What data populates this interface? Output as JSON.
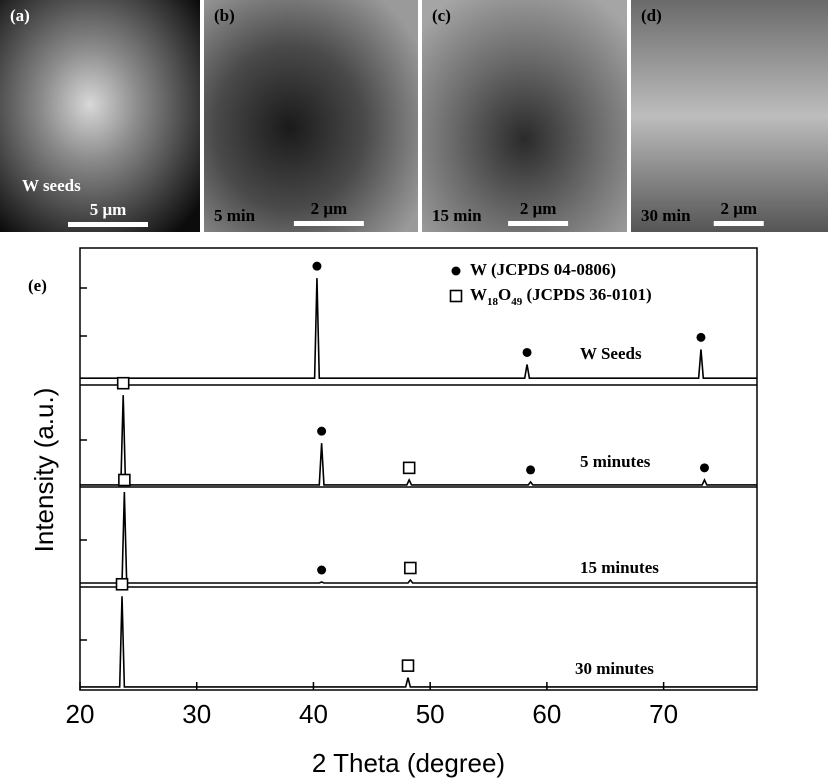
{
  "images": [
    {
      "label": "(a)",
      "caption": "W seeds",
      "scale": "5 μm"
    },
    {
      "label": "(b)",
      "caption": "5 min",
      "scale": "2 μm"
    },
    {
      "label": "(c)",
      "caption": "15 min",
      "scale": "2 μm"
    },
    {
      "label": "(d)",
      "caption": "30 min",
      "scale": "2 μm"
    }
  ],
  "chart_data": {
    "type": "line",
    "panel_label": "(e)",
    "x_label": "2 Theta (degree)",
    "y_label": "Intensity (a.u.)",
    "xlim": [
      20,
      78
    ],
    "xticks": [
      20,
      30,
      40,
      50,
      60,
      70
    ],
    "ylim": [
      0,
      100
    ],
    "legend": [
      {
        "marker": "circle",
        "label_parts": [
          "W (JCPDS 04-0806)"
        ]
      },
      {
        "marker": "square",
        "label_parts": [
          "W",
          "18",
          "O",
          "49",
          " (JCPDS 36-0101)"
        ]
      }
    ],
    "series": [
      {
        "name": "W Seeds",
        "color": "#000000",
        "x": [
          20,
          40.1,
          40.3,
          40.5,
          58.1,
          58.3,
          58.5,
          73.0,
          73.2,
          73.4,
          78
        ],
        "values": [
          5,
          5,
          78,
          5,
          5,
          15,
          5,
          5,
          26,
          5,
          5
        ],
        "w_peaks": [
          40.3,
          58.3,
          73.2
        ],
        "w18o49_peaks": []
      },
      {
        "name": "5 minutes",
        "color": "#000000",
        "x": [
          20,
          23.5,
          23.7,
          23.9,
          40.5,
          40.7,
          40.9,
          48.0,
          48.2,
          48.4,
          58.4,
          58.6,
          58.8,
          73.3,
          73.5,
          73.7,
          78
        ],
        "values": [
          2,
          2,
          90,
          2,
          2,
          43,
          2,
          2,
          7,
          2,
          2,
          5,
          2,
          2,
          7,
          2,
          2
        ],
        "w_peaks": [
          40.7,
          58.6,
          73.5
        ],
        "w18o49_peaks": [
          23.7,
          48.2
        ]
      },
      {
        "name": "15 minutes",
        "color": "#000000",
        "x": [
          20,
          23.6,
          23.8,
          24.0,
          40.5,
          40.7,
          40.9,
          48.1,
          48.3,
          48.5,
          78
        ],
        "values": [
          4,
          4,
          95,
          4,
          4,
          5,
          4,
          4,
          7,
          4,
          4
        ],
        "w_peaks": [
          40.7
        ],
        "w18o49_peaks": [
          23.8,
          48.3
        ]
      },
      {
        "name": "30 minutes",
        "color": "#000000",
        "x": [
          20,
          23.4,
          23.6,
          23.8,
          47.9,
          48.1,
          48.3,
          78
        ],
        "values": [
          3,
          3,
          91,
          3,
          3,
          12,
          3,
          3
        ],
        "w_peaks": [],
        "w18o49_peaks": [
          23.6,
          48.1
        ]
      }
    ]
  }
}
